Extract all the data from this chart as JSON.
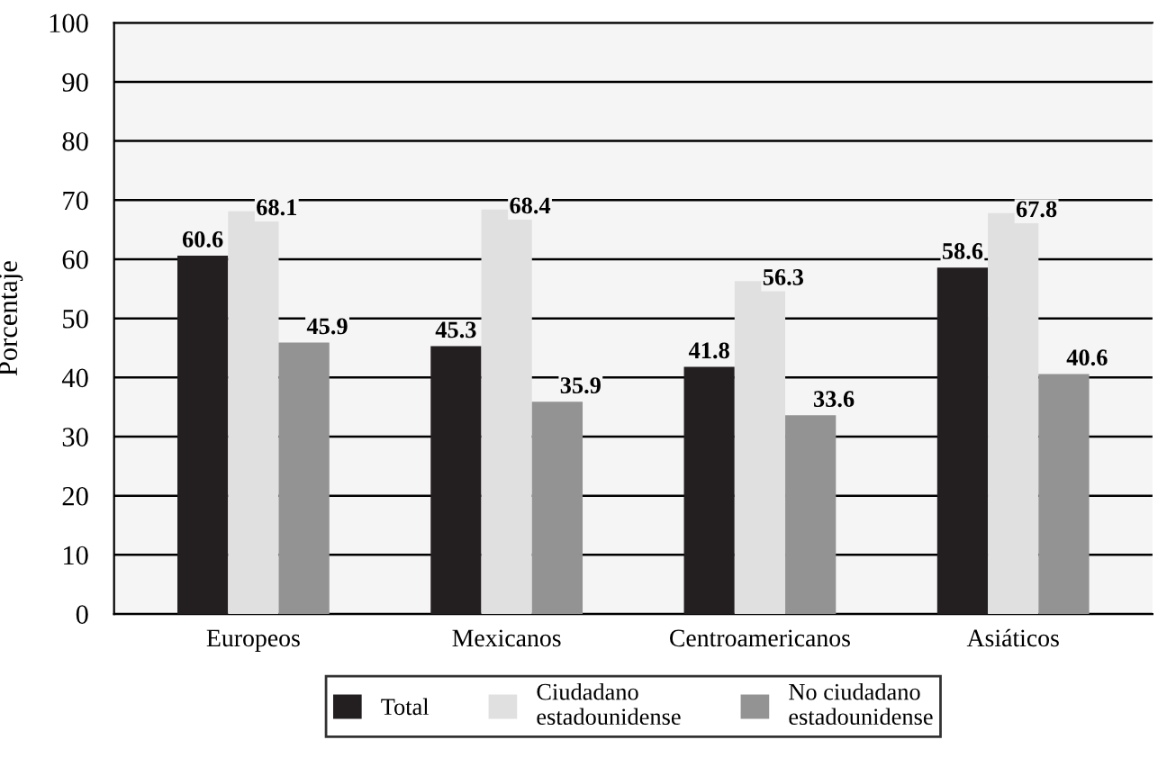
{
  "chart_data": {
    "type": "bar",
    "ylabel": "Porcentaje",
    "categories": [
      "Europeos",
      "Mexicanos",
      "Centroamericanos",
      "Asiáticos"
    ],
    "series": [
      {
        "name": "Total",
        "color": "#231f20",
        "values": [
          60.6,
          45.3,
          41.8,
          58.6
        ]
      },
      {
        "name": "Ciudadano\nestadounidense",
        "color": "#e0e0e0",
        "values": [
          68.1,
          68.4,
          56.3,
          67.8
        ]
      },
      {
        "name": "No ciudadano\nestadounidense",
        "color": "#939393",
        "values": [
          45.9,
          35.9,
          33.6,
          40.6
        ]
      }
    ],
    "ylim": [
      0,
      100
    ],
    "yticks": [
      0,
      10,
      20,
      30,
      40,
      50,
      60,
      70,
      80,
      90,
      100
    ],
    "grid": "y",
    "data_labels": true,
    "legend": "bottom"
  }
}
